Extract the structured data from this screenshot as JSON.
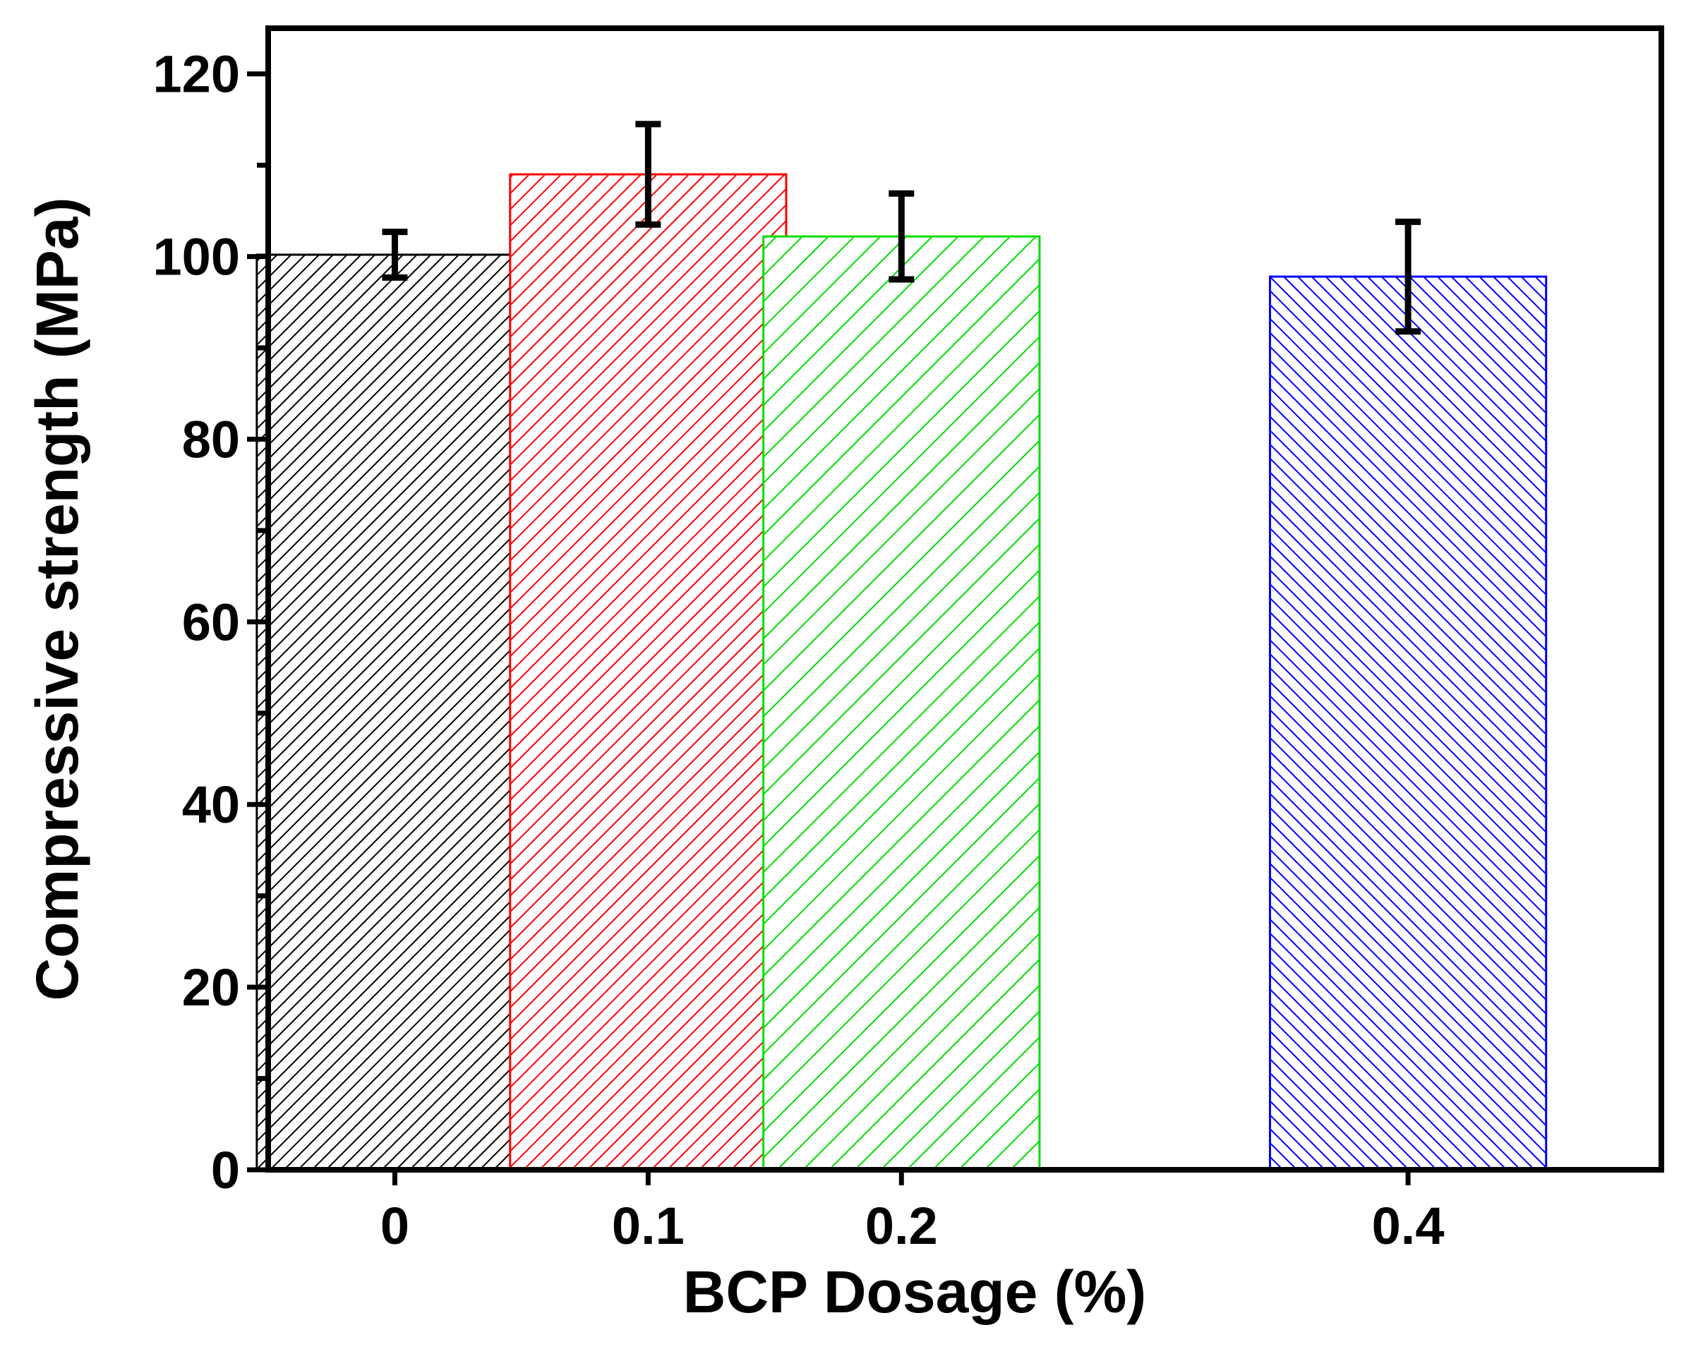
{
  "chart_data": {
    "type": "bar",
    "title": "",
    "xlabel": "BCP Dosage (%)",
    "ylabel": "Compressive strength (MPa)",
    "x": [
      0,
      0.1,
      0.2,
      0.4
    ],
    "categories": [
      "0",
      "0.1",
      "0.2",
      "0.4"
    ],
    "values": [
      100.2,
      109.0,
      102.2,
      97.8
    ],
    "errors": [
      2.5,
      5.5,
      4.7,
      6.0
    ],
    "colors": [
      "#000000",
      "#ff0000",
      "#00dd00",
      "#0000ff"
    ],
    "ylim": [
      0,
      125
    ],
    "xlim": [
      -0.05,
      0.5
    ],
    "yticks": [
      0,
      20,
      40,
      60,
      80,
      100,
      120
    ],
    "yminor_step": 10,
    "grid": false,
    "legend": "none",
    "fill": "diagonal-hatch"
  }
}
